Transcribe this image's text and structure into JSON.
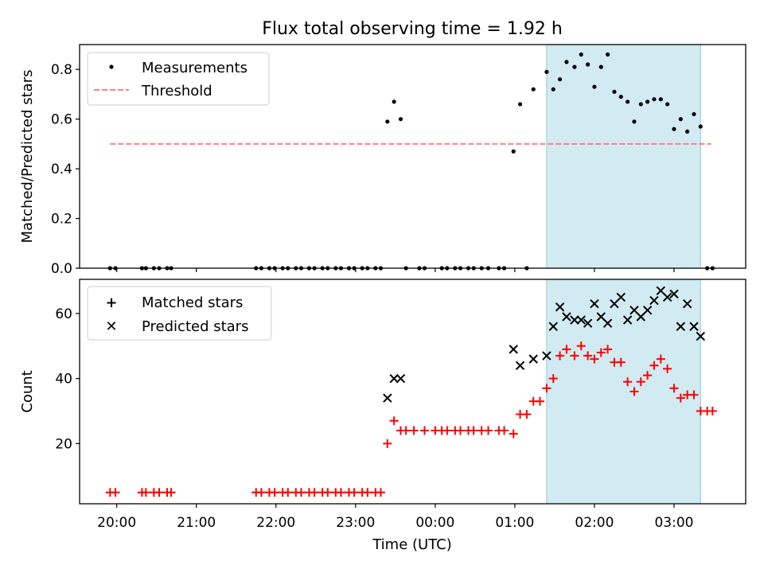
{
  "title": "Flux total observing time = 1.92 h",
  "colors": {
    "measurement": "#000000",
    "threshold": "#ff7f7f",
    "matched": "#ff0000",
    "predicted": "#000000",
    "highlight": "#add8e6"
  },
  "chart_data": [
    {
      "type": "scatter",
      "ylabel": "Matched/Predicted stars",
      "ylim": [
        0,
        0.9
      ],
      "yticks": [
        0.0,
        0.2,
        0.4,
        0.6,
        0.8
      ],
      "ytick_labels": [
        "0.0",
        "0.2",
        "0.4",
        "0.6",
        "0.8"
      ],
      "xlim": [
        "19:32",
        "03:54"
      ],
      "highlight_span": [
        "01:24",
        "03:20"
      ],
      "legend": {
        "placement": "upper-left",
        "entries": [
          "Measurements",
          "Threshold"
        ]
      },
      "threshold": {
        "name": "Threshold",
        "value": 0.5,
        "x_range": [
          "19:55",
          "03:28"
        ]
      },
      "series": [
        {
          "name": "Measurements",
          "marker": "dot",
          "points": [
            [
              "19:55",
              0
            ],
            [
              "19:59",
              0
            ],
            [
              "20:19",
              0
            ],
            [
              "20:22",
              0
            ],
            [
              "20:28",
              0
            ],
            [
              "20:32",
              0
            ],
            [
              "20:38",
              0
            ],
            [
              "20:41",
              0
            ],
            [
              "21:45",
              0
            ],
            [
              "21:49",
              0
            ],
            [
              "21:55",
              0
            ],
            [
              "21:59",
              0
            ],
            [
              "22:05",
              0
            ],
            [
              "22:09",
              0
            ],
            [
              "22:15",
              0
            ],
            [
              "22:19",
              0
            ],
            [
              "22:25",
              0
            ],
            [
              "22:29",
              0
            ],
            [
              "22:35",
              0
            ],
            [
              "22:39",
              0
            ],
            [
              "22:45",
              0
            ],
            [
              "22:49",
              0
            ],
            [
              "22:55",
              0
            ],
            [
              "22:59",
              0
            ],
            [
              "23:05",
              0
            ],
            [
              "23:09",
              0
            ],
            [
              "23:15",
              0
            ],
            [
              "23:19",
              0
            ],
            [
              "23:24",
              0.59
            ],
            [
              "23:29",
              0.67
            ],
            [
              "23:34",
              0.6
            ],
            [
              "23:38",
              0
            ],
            [
              "23:48",
              0
            ],
            [
              "23:52",
              0
            ],
            [
              "00:05",
              0
            ],
            [
              "00:09",
              0
            ],
            [
              "00:15",
              0
            ],
            [
              "00:19",
              0
            ],
            [
              "00:25",
              0
            ],
            [
              "00:29",
              0
            ],
            [
              "00:35",
              0
            ],
            [
              "00:40",
              0
            ],
            [
              "00:48",
              0
            ],
            [
              "00:52",
              0
            ],
            [
              "00:59",
              0.47
            ],
            [
              "01:04",
              0.66
            ],
            [
              "01:14",
              0.72
            ],
            [
              "01:24",
              0.79
            ],
            [
              "01:29",
              0.72
            ],
            [
              "01:34",
              0.76
            ],
            [
              "01:39",
              0.83
            ],
            [
              "01:45",
              0.81
            ],
            [
              "01:50",
              0.86
            ],
            [
              "01:55",
              0.82
            ],
            [
              "02:00",
              0.73
            ],
            [
              "02:05",
              0.81
            ],
            [
              "02:10",
              0.86
            ],
            [
              "02:15",
              0.71
            ],
            [
              "02:20",
              0.69
            ],
            [
              "02:25",
              0.67
            ],
            [
              "02:30",
              0.59
            ],
            [
              "02:35",
              0.66
            ],
            [
              "02:40",
              0.67
            ],
            [
              "02:45",
              0.68
            ],
            [
              "02:50",
              0.68
            ],
            [
              "02:55",
              0.66
            ],
            [
              "03:00",
              0.56
            ],
            [
              "03:05",
              0.6
            ],
            [
              "03:10",
              0.55
            ],
            [
              "03:15",
              0.62
            ],
            [
              "03:20",
              0.57
            ],
            [
              "01:09",
              0
            ],
            [
              "03:25",
              0
            ],
            [
              "03:29",
              0
            ]
          ]
        }
      ]
    },
    {
      "type": "scatter",
      "ylabel": "Count",
      "xlabel": "Time (UTC)",
      "ylim": [
        1.5,
        70.5
      ],
      "yticks": [
        20,
        40,
        60
      ],
      "ytick_labels": [
        "20",
        "40",
        "60"
      ],
      "xlim": [
        "19:32",
        "03:54"
      ],
      "xticks": [
        "20:00",
        "21:00",
        "22:00",
        "23:00",
        "00:00",
        "01:00",
        "02:00",
        "03:00"
      ],
      "highlight_span": [
        "01:24",
        "03:20"
      ],
      "legend": {
        "placement": "upper-left",
        "entries": [
          "Matched stars",
          "Predicted stars"
        ]
      },
      "series": [
        {
          "name": "Matched stars",
          "marker": "plus",
          "points": [
            [
              "19:55",
              5
            ],
            [
              "19:59",
              5
            ],
            [
              "20:19",
              5
            ],
            [
              "20:22",
              5
            ],
            [
              "20:28",
              5
            ],
            [
              "20:32",
              5
            ],
            [
              "20:38",
              5
            ],
            [
              "20:41",
              5
            ],
            [
              "21:45",
              5
            ],
            [
              "21:49",
              5
            ],
            [
              "21:55",
              5
            ],
            [
              "21:59",
              5
            ],
            [
              "22:05",
              5
            ],
            [
              "22:09",
              5
            ],
            [
              "22:15",
              5
            ],
            [
              "22:19",
              5
            ],
            [
              "22:25",
              5
            ],
            [
              "22:29",
              5
            ],
            [
              "22:35",
              5
            ],
            [
              "22:39",
              5
            ],
            [
              "22:45",
              5
            ],
            [
              "22:49",
              5
            ],
            [
              "22:55",
              5
            ],
            [
              "22:59",
              5
            ],
            [
              "23:05",
              5
            ],
            [
              "23:09",
              5
            ],
            [
              "23:15",
              5
            ],
            [
              "23:19",
              5
            ],
            [
              "23:24",
              20
            ],
            [
              "23:29",
              27
            ],
            [
              "23:34",
              24
            ],
            [
              "23:38",
              24
            ],
            [
              "23:44",
              24
            ],
            [
              "23:52",
              24
            ],
            [
              "00:00",
              24
            ],
            [
              "00:05",
              24
            ],
            [
              "00:09",
              24
            ],
            [
              "00:15",
              24
            ],
            [
              "00:19",
              24
            ],
            [
              "00:25",
              24
            ],
            [
              "00:29",
              24
            ],
            [
              "00:35",
              24
            ],
            [
              "00:40",
              24
            ],
            [
              "00:48",
              24
            ],
            [
              "00:52",
              24
            ],
            [
              "00:59",
              23
            ],
            [
              "01:04",
              29
            ],
            [
              "01:09",
              29
            ],
            [
              "01:14",
              33
            ],
            [
              "01:19",
              33
            ],
            [
              "01:24",
              37
            ],
            [
              "01:29",
              40
            ],
            [
              "01:34",
              47
            ],
            [
              "01:39",
              49
            ],
            [
              "01:45",
              47
            ],
            [
              "01:50",
              50
            ],
            [
              "01:55",
              47
            ],
            [
              "02:00",
              46
            ],
            [
              "02:05",
              48
            ],
            [
              "02:10",
              49
            ],
            [
              "02:15",
              45
            ],
            [
              "02:20",
              45
            ],
            [
              "02:25",
              39
            ],
            [
              "02:30",
              36
            ],
            [
              "02:35",
              39
            ],
            [
              "02:40",
              41
            ],
            [
              "02:45",
              44
            ],
            [
              "02:50",
              46
            ],
            [
              "02:55",
              43
            ],
            [
              "03:00",
              37
            ],
            [
              "03:05",
              34
            ],
            [
              "03:10",
              35
            ],
            [
              "03:15",
              35
            ],
            [
              "03:20",
              30
            ],
            [
              "03:25",
              30
            ],
            [
              "03:29",
              30
            ]
          ]
        },
        {
          "name": "Predicted stars",
          "marker": "x",
          "points": [
            [
              "23:24",
              34
            ],
            [
              "23:29",
              40
            ],
            [
              "23:34",
              40
            ],
            [
              "00:59",
              49
            ],
            [
              "01:04",
              44
            ],
            [
              "01:14",
              46
            ],
            [
              "01:24",
              47
            ],
            [
              "01:29",
              56
            ],
            [
              "01:34",
              62
            ],
            [
              "01:39",
              59
            ],
            [
              "01:45",
              58
            ],
            [
              "01:50",
              58
            ],
            [
              "01:55",
              57
            ],
            [
              "02:00",
              63
            ],
            [
              "02:05",
              59
            ],
            [
              "02:10",
              57
            ],
            [
              "02:15",
              63
            ],
            [
              "02:20",
              65
            ],
            [
              "02:25",
              58
            ],
            [
              "02:30",
              61
            ],
            [
              "02:35",
              59
            ],
            [
              "02:40",
              61
            ],
            [
              "02:45",
              64
            ],
            [
              "02:50",
              67
            ],
            [
              "02:55",
              65
            ],
            [
              "03:00",
              66
            ],
            [
              "03:05",
              56
            ],
            [
              "03:10",
              63
            ],
            [
              "03:15",
              56
            ],
            [
              "03:20",
              53
            ]
          ]
        }
      ]
    }
  ]
}
